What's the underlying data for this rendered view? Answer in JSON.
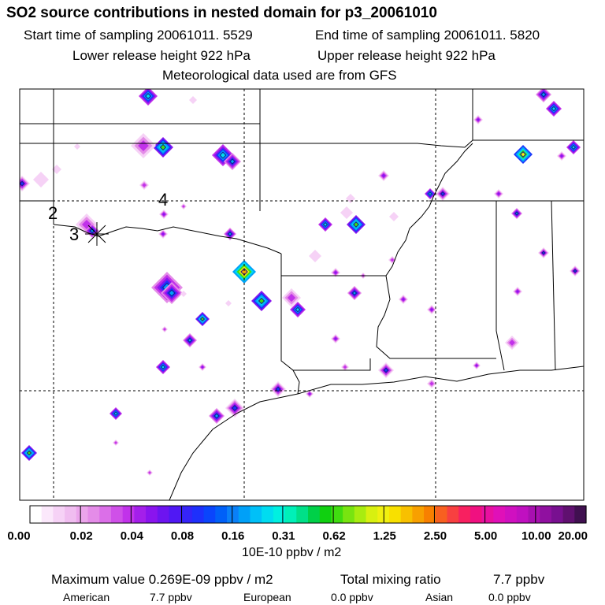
{
  "header": {
    "title": "SO2 source contributions in nested domain for p3_20061010",
    "start_label": "Start time of sampling 20061011.  5529",
    "end_label": "End time of sampling 20061011.  5820",
    "lower_label": "Lower release height  922 hPa",
    "upper_label": "Upper release height  922 hPa",
    "met_label": "Meteorological data used are from GFS"
  },
  "chart_data": {
    "type": "heatmap",
    "title": "SO2 source contributions in nested domain for p3_20061010",
    "source_labels": [
      "2",
      "3",
      "4"
    ],
    "colorbar": {
      "tick_labels": [
        "0.00",
        "0.02",
        "0.04",
        "0.08",
        "0.16",
        "0.31",
        "0.62",
        "1.25",
        "2.50",
        "5.00",
        "10.00",
        "20.00"
      ],
      "units": "10E-10 ppbv / m2",
      "colors": [
        "#ffffff",
        "#fbe8fb",
        "#f6d2f6",
        "#f0bdf0",
        "#eba5eb",
        "#e48ce8",
        "#db6fe8",
        "#cf50e8",
        "#c132ea",
        "#a41fea",
        "#8a14ee",
        "#6d14f0",
        "#5018f4",
        "#3524f8",
        "#1e30fc",
        "#0a45fc",
        "#0060f8",
        "#0a80f8",
        "#00a0f8",
        "#00c0f8",
        "#00dcf0",
        "#00f0e0",
        "#00f0b8",
        "#00e088",
        "#00d048",
        "#10d010",
        "#40dc10",
        "#78e410",
        "#a8ec10",
        "#d8f010",
        "#f0f010",
        "#f8e000",
        "#f8c000",
        "#f8a000",
        "#f88000",
        "#f86020",
        "#f84040",
        "#f82060",
        "#f01080",
        "#e810a0",
        "#e010b8",
        "#d010c0",
        "#c010c0",
        "#a810b0",
        "#9010a0",
        "#781090",
        "#601070",
        "#401050"
      ]
    },
    "summary": {
      "max_label": "Maximum value  0.269E-09 ppbv / m2",
      "total_label": "Total mixing ratio",
      "total_value": "7.7 ppbv",
      "american_label": "American",
      "american_value": "7.7 ppbv",
      "european_label": "European",
      "european_value": "0.0 ppbv",
      "asian_label": "Asian",
      "asian_value": "0.0 ppbv"
    }
  }
}
